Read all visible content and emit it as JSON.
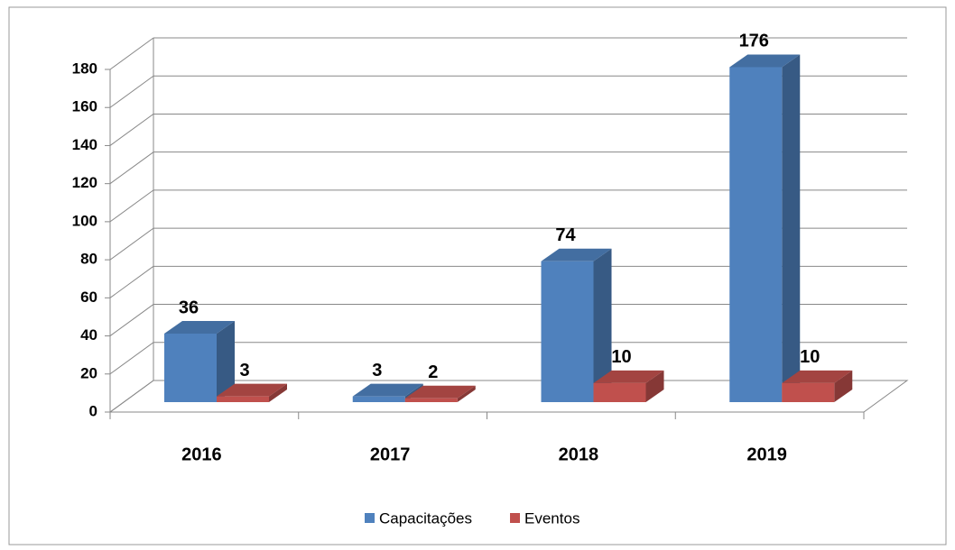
{
  "chart_data": {
    "type": "bar",
    "categories": [
      "2016",
      "2017",
      "2018",
      "2019"
    ],
    "series": [
      {
        "name": "Capacitações",
        "color": "#4f81bd",
        "values": [
          36,
          3,
          74,
          176
        ]
      },
      {
        "name": "Eventos",
        "color": "#c0504d",
        "values": [
          3,
          2,
          10,
          10
        ]
      }
    ],
    "ylim": [
      0,
      180
    ],
    "yticks": [
      0,
      20,
      40,
      60,
      80,
      100,
      120,
      140,
      160,
      180
    ],
    "grid": true,
    "legend": "bottom"
  }
}
